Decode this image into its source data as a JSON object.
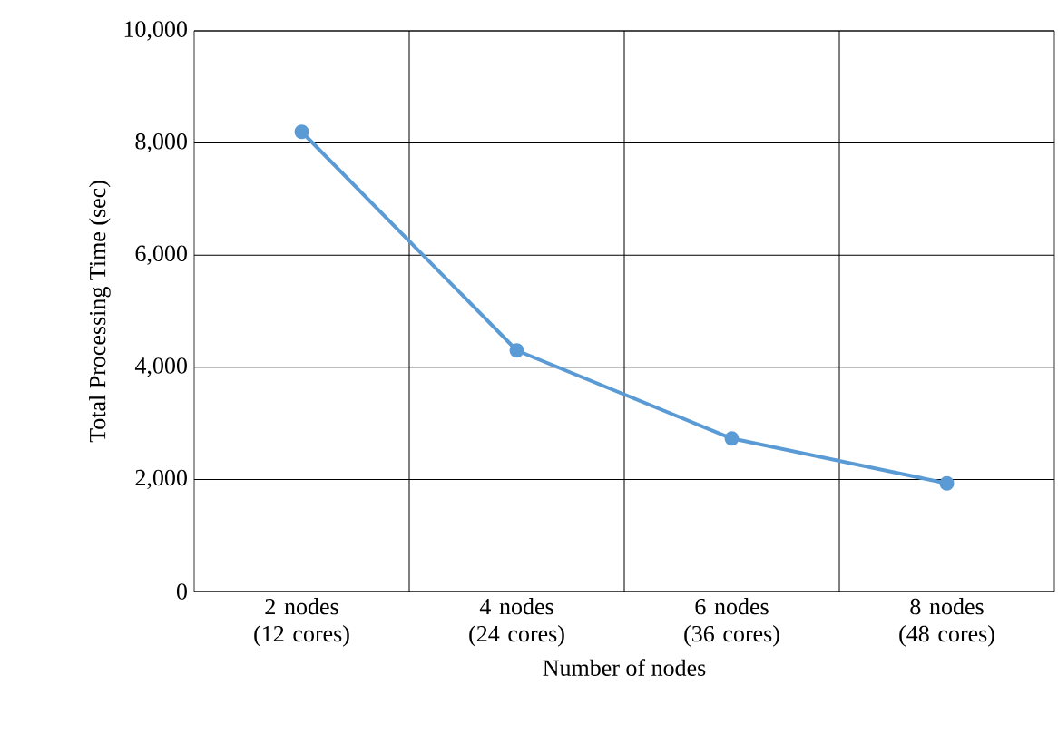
{
  "chart_data": {
    "type": "line",
    "xlabel": "Number of nodes",
    "ylabel": "Total Processing  Time (sec)",
    "categories": [
      "2 nodes (12 cores)",
      "4 nodes (24 cores)",
      "6 nodes (36 cores)",
      "8 nodes (48 cores)"
    ],
    "values": [
      8200,
      4300,
      2730,
      1930
    ],
    "color": "#5b9bd5",
    "marker": "circle",
    "line_style": "solid",
    "ylim": [
      0,
      10000
    ],
    "yticks": [
      {
        "value": 0,
        "label": "0"
      },
      {
        "value": 2000,
        "label": "2,000"
      },
      {
        "value": 4000,
        "label": "4,000"
      },
      {
        "value": 6000,
        "label": "6,000"
      },
      {
        "value": 8000,
        "label": "8,000"
      },
      {
        "value": 10000,
        "label": "10,000"
      }
    ],
    "grid": true
  }
}
